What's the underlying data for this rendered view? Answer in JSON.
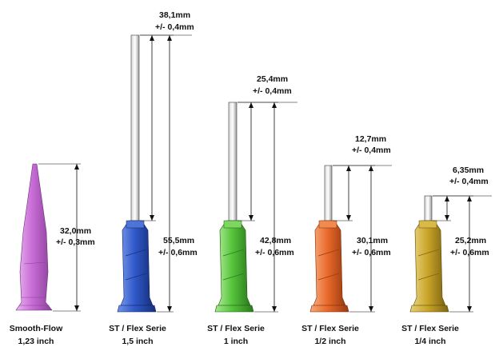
{
  "tips": [
    {
      "name": "smooth-flow",
      "caption_line1": "Smooth-Flow",
      "caption_line2": "1,23 inch",
      "color": "#c86cd6",
      "color_dark": "#8a3f98",
      "color_light": "#e9b8f0",
      "total_length": "32,0mm",
      "total_tolerance": "+/- 0,3mm",
      "needle_length": "",
      "needle_tolerance": ""
    },
    {
      "name": "st-flex-1-5",
      "caption_line1": "ST / Flex Serie",
      "caption_line2": "1,5 inch",
      "color": "#2f57c7",
      "color_dark": "#15307a",
      "color_light": "#6f93e8",
      "total_length": "55,5mm",
      "total_tolerance": "+/- 0,6mm",
      "needle_length": "38,1mm",
      "needle_tolerance": "+/- 0,4mm"
    },
    {
      "name": "st-flex-1",
      "caption_line1": "ST / Flex Serie",
      "caption_line2": "1 inch",
      "color": "#54c23a",
      "color_dark": "#2c7a1c",
      "color_light": "#a7e88f",
      "total_length": "42,8mm",
      "total_tolerance": "+/- 0,6mm",
      "needle_length": "25,4mm",
      "needle_tolerance": "+/- 0,4mm"
    },
    {
      "name": "st-flex-1-2",
      "caption_line1": "ST / Flex Serie",
      "caption_line2": "1/2 inch",
      "color": "#e8682a",
      "color_dark": "#9a3a10",
      "color_light": "#f6a777",
      "total_length": "30,1mm",
      "total_tolerance": "+/- 0,6mm",
      "needle_length": "12,7mm",
      "needle_tolerance": "+/- 0,4mm"
    },
    {
      "name": "st-flex-1-4",
      "caption_line1": "ST / Flex Serie",
      "caption_line2": "1/4 inch",
      "color": "#c9a428",
      "color_dark": "#7d6412",
      "color_light": "#e6cf78",
      "total_length": "25,2mm",
      "total_tolerance": "+/- 0,6mm",
      "needle_length": "6,35mm",
      "needle_tolerance": "+/- 0,4mm"
    }
  ]
}
